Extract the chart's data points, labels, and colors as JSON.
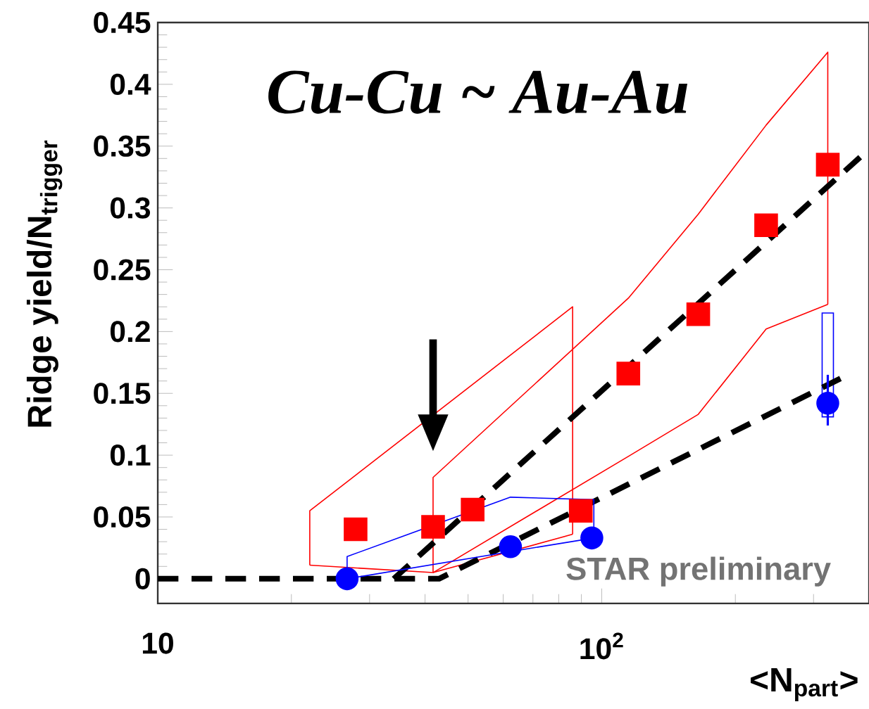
{
  "chart_data": {
    "type": "scatter",
    "title": "*Cu-Cu ~ Au-Au*",
    "xlabel": "<N$_{part}$>",
    "ylabel": "Ridge yield/N$_{trigger}$",
    "log": "x",
    "xlim": [
      10,
      400
    ],
    "xticks": [
      10,
      {
        "value": 100,
        "label": "10$^{2}$"
      }
    ],
    "ylim": [
      -0.02,
      0.45
    ],
    "yticks": [
      0,
      0.05,
      0.1,
      0.15,
      0.2,
      0.25,
      0.3,
      0.35,
      0.4,
      0.45
    ],
    "annotations": [
      "STAR preliminary"
    ],
    "series": [
      {
        "type": "line",
        "color": "#ff0000",
        "marker": "none",
        "line_style": "solid",
        "x": [
          41.7,
          41.7,
          114.8,
          165,
          234.6,
          323,
          323
        ],
        "values": [
          0.005,
          0.082,
          0.227,
          0.295,
          0.367,
          0.426,
          0.222
        ]
      },
      {
        "type": "line",
        "color": "#ff0000",
        "marker": "none",
        "line_style": "solid",
        "x": [
          41.7,
          114.8,
          165,
          234.6,
          323
        ],
        "values": [
          0.005,
          0.099,
          0.133,
          0.202,
          0.222
        ]
      },
      {
        "type": "line",
        "color": "#ff0000",
        "marker": "none",
        "line_style": "solid",
        "x": [
          22,
          22,
          86,
          86
        ],
        "values": [
          0.011,
          0.055,
          0.22,
          0.036
        ]
      },
      {
        "type": "line",
        "color": "#ff0000",
        "marker": "none",
        "line_style": "solid",
        "x": [
          22,
          41.7,
          86
        ],
        "values": [
          0.011,
          0.005,
          0.036
        ]
      },
      {
        "type": "bar",
        "color": "#0000ff",
        "x": [
          323
        ],
        "base": [
          0.131
        ],
        "values": [
          0.084
        ]
      },
      {
        "type": "line",
        "color": "#000000",
        "marker": "none",
        "line_style": "dashed",
        "x": [
          34,
          390
        ],
        "values": [
          0.0,
          0.344
        ]
      },
      {
        "type": "line",
        "color": "#000000",
        "marker": "none",
        "line_style": "dashed",
        "x": [
          10,
          43,
          345
        ],
        "values": [
          0.0,
          0.0,
          0.162
        ]
      },
      {
        "color": "#ff0000",
        "marker": "square",
        "x": [
          41.7,
          114.8,
          165,
          234.6,
          323
        ],
        "values": [
          0.042,
          0.166,
          0.214,
          0.286,
          0.335
        ]
      },
      {
        "color": "#ff0000",
        "marker": "square",
        "x": [
          27.9,
          51.2,
          89.7
        ],
        "values": [
          0.04,
          0.056,
          0.055
        ]
      },
      {
        "color": "#0000ff",
        "marker": "circle",
        "x": [
          26.7,
          62.3,
          95
        ],
        "values": [
          0.0,
          0.026,
          0.033
        ]
      },
      {
        "color": "#0000ff",
        "marker": "circle",
        "x": [
          323
        ],
        "values": [
          0.142
        ],
        "errors": [
          [
            0.124,
            0.165
          ]
        ]
      },
      {
        "type": "line",
        "color": "#0000ff",
        "marker": "none",
        "line_style": "solid",
        "x": [
          26.7,
          26.7,
          62.3,
          96,
          96
        ],
        "values": [
          0.0,
          0.018,
          0.066,
          0.064,
          0.033
        ]
      },
      {
        "type": "line",
        "color": "#0000ff",
        "marker": "none",
        "line_style": "solid",
        "x": [
          26.7,
          62.3,
          96
        ],
        "values": [
          0.0,
          0.022,
          0.033
        ]
      }
    ]
  }
}
